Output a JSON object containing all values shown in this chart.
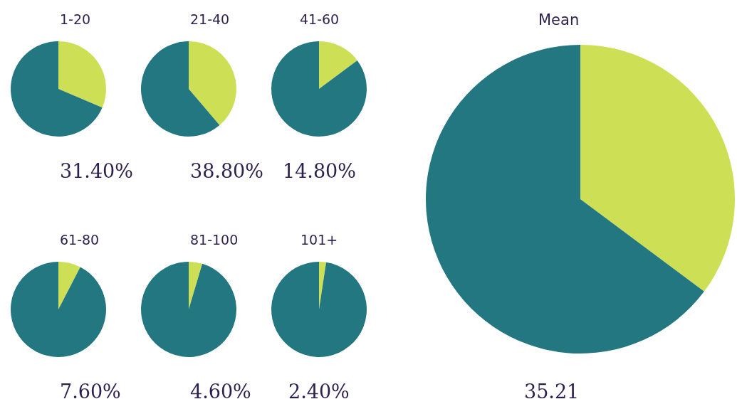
{
  "chart_data": [
    {
      "type": "pie",
      "title": "1-20",
      "categories": [
        null,
        null
      ],
      "values": [
        31.4,
        68.6
      ],
      "colors": [
        "#cddf54",
        "#237780"
      ],
      "annotations": [
        "31.40%"
      ]
    },
    {
      "type": "pie",
      "title": "21-40",
      "categories": [
        null,
        null
      ],
      "values": [
        38.8,
        61.2
      ],
      "colors": [
        "#cddf54",
        "#237780"
      ],
      "annotations": [
        "38.80%"
      ]
    },
    {
      "type": "pie",
      "title": "41-60",
      "categories": [
        null,
        null
      ],
      "values": [
        14.8,
        85.2
      ],
      "colors": [
        "#cddf54",
        "#237780"
      ],
      "annotations": [
        "14.80%"
      ]
    },
    {
      "type": "pie",
      "title": "61-80",
      "categories": [
        null,
        null
      ],
      "values": [
        7.6,
        92.4
      ],
      "colors": [
        "#cddf54",
        "#237780"
      ],
      "annotations": [
        "7.60%"
      ]
    },
    {
      "type": "pie",
      "title": "81-100",
      "categories": [
        null,
        null
      ],
      "values": [
        4.6,
        95.4
      ],
      "colors": [
        "#cddf54",
        "#237780"
      ],
      "annotations": [
        "4.60%"
      ]
    },
    {
      "type": "pie",
      "title": "101+",
      "categories": [
        null,
        null
      ],
      "values": [
        2.4,
        97.6
      ],
      "colors": [
        "#cddf54",
        "#237780"
      ],
      "annotations": [
        "2.40%"
      ]
    },
    {
      "type": "pie",
      "title": "Mean",
      "categories": [
        null,
        null
      ],
      "values": [
        35.21,
        64.79
      ],
      "colors": [
        "#cddf54",
        "#237780"
      ],
      "annotations": [
        "35.21"
      ]
    }
  ]
}
